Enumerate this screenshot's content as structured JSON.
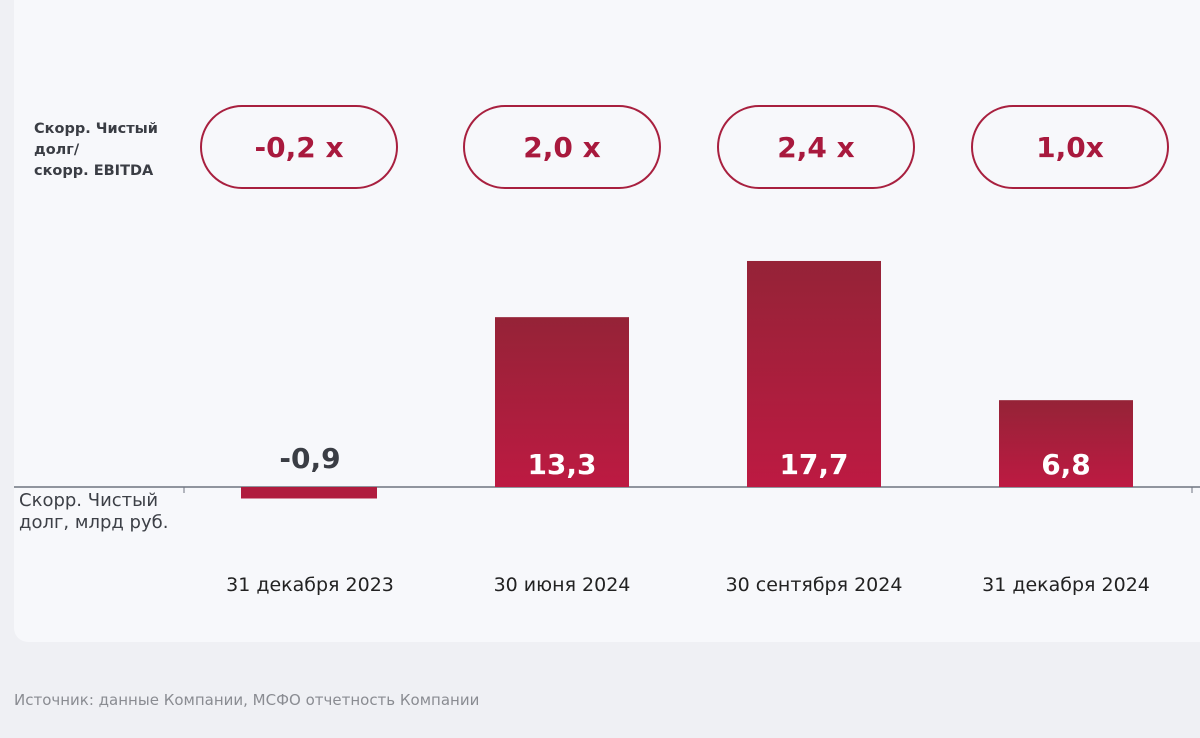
{
  "chart_data": {
    "type": "bar",
    "categories": [
      "31 декабря 2023",
      "30 июня 2024",
      "30 сентября 2024",
      "31 декабря 2024"
    ],
    "series": [
      {
        "name": "Скорр. Чистый долг, млрд руб.",
        "values": [
          -0.9,
          13.3,
          17.7,
          6.8
        ],
        "labels": [
          "-0,9",
          "13,3",
          "17,7",
          "6,8"
        ]
      }
    ],
    "ratio_label": "Скорр. Чистый\nдолг/\nскорр. EBITDA",
    "ratios": [
      "-0,2 x",
      "2,0 x",
      "2,4 x",
      "1,0x"
    ],
    "ylabel": "Скорр. Чистый\nдолг, млрд руб.",
    "grid": false,
    "colors": {
      "bar_top": "#952337",
      "bar_bottom": "#bd1a42",
      "pill": "#a8203f"
    }
  },
  "source": "Источник: данные Компании, МСФО отчетность Компании"
}
